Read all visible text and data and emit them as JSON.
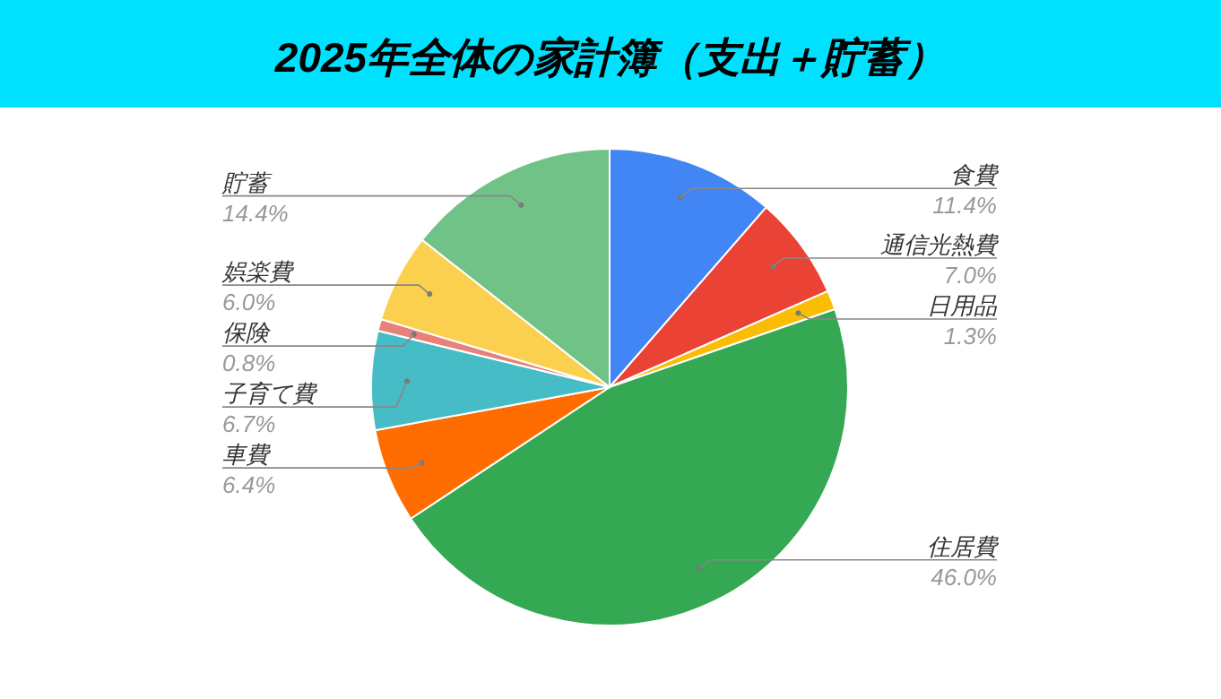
{
  "chart_data": {
    "type": "pie",
    "title": "2025年全体の家計簿（支出＋貯蓄）",
    "categories": [
      "食費",
      "通信光熱費",
      "日用品",
      "住居費",
      "車費",
      "子育て費",
      "保険",
      "娯楽費",
      "貯蓄"
    ],
    "values": [
      11.4,
      7.0,
      1.3,
      46.0,
      6.4,
      6.7,
      0.8,
      6.0,
      14.4
    ],
    "value_labels": [
      "11.4%",
      "7.0%",
      "1.3%",
      "46.0%",
      "6.4%",
      "6.7%",
      "0.8%",
      "6.0%",
      "14.4%"
    ],
    "colors": [
      "#4285f4",
      "#ea4335",
      "#fbbc04",
      "#34a853",
      "#ff6d01",
      "#46bdc6",
      "#e8817a",
      "#fcd04f",
      "#71c287"
    ],
    "legend": false
  }
}
